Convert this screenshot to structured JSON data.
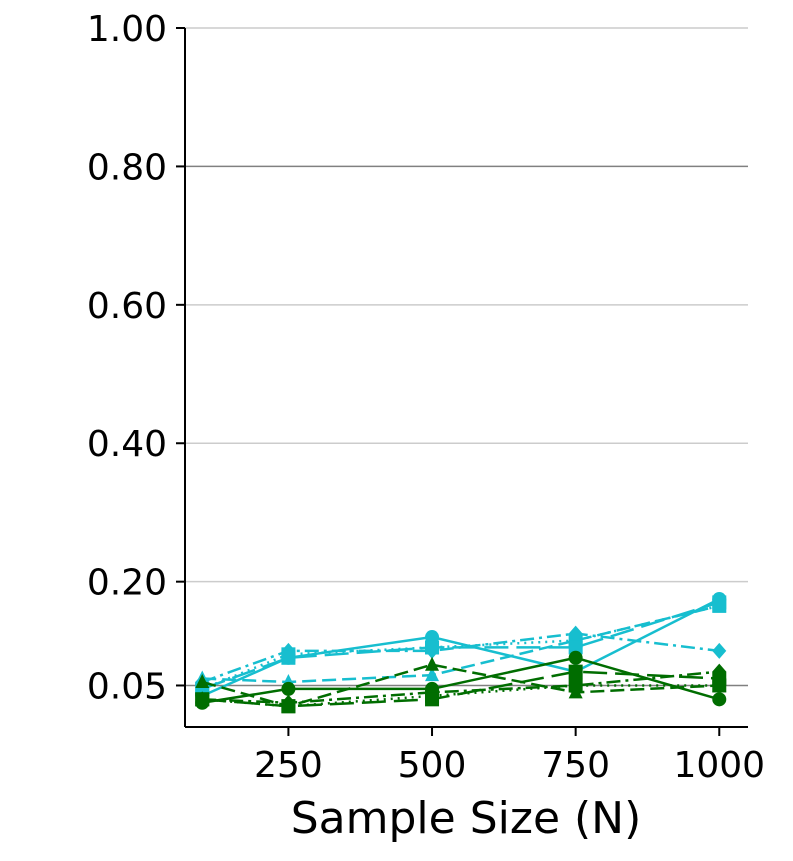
{
  "chart_data": {
    "type": "line",
    "title": "",
    "xlabel": "Sample Size (N)",
    "ylabel": "",
    "x": [
      100,
      250,
      500,
      750,
      1000
    ],
    "x_ticks": [
      250,
      500,
      750,
      1000
    ],
    "x_tick_labels": [
      "250",
      "500",
      "750",
      "1000"
    ],
    "xlim": [
      70,
      1050
    ],
    "y_ticks": [
      0.05,
      0.2,
      0.4,
      0.6,
      0.8,
      1.0
    ],
    "y_tick_labels": [
      "0.05",
      "0.20",
      "0.40",
      "0.60",
      "0.80",
      "1.00"
    ],
    "ylim": [
      -0.01,
      1.0
    ],
    "grid": "horizontal",
    "reference_line": 0.8,
    "baseline": 0.05,
    "colors": {
      "green": "#006d00",
      "cyan": "#17becf",
      "grid": "#cccccc",
      "reference": "#808080"
    },
    "series": [
      {
        "color": "#17becf",
        "dash": "solid",
        "marker": "circle",
        "values": [
          0.035,
          0.09,
          0.12,
          0.07,
          0.175
        ]
      },
      {
        "color": "#17becf",
        "dash": "dotted",
        "marker": "square",
        "values": [
          0.045,
          0.095,
          0.105,
          0.115,
          0.165
        ]
      },
      {
        "color": "#17becf",
        "dash": "dashed",
        "marker": "triangle",
        "values": [
          0.06,
          0.055,
          0.065,
          0.115,
          0.165
        ]
      },
      {
        "color": "#17becf",
        "dash": "dashdot",
        "marker": "diamond",
        "values": [
          0.055,
          0.1,
          0.1,
          0.125,
          0.1
        ]
      },
      {
        "color": "#17becf",
        "dash": "longdash",
        "marker": "square",
        "values": [
          0.045,
          0.09,
          0.105,
          0.105,
          0.17
        ]
      },
      {
        "color": "#006d00",
        "dash": "solid",
        "marker": "circle",
        "values": [
          0.025,
          0.045,
          0.045,
          0.09,
          0.03
        ]
      },
      {
        "color": "#006d00",
        "dash": "dotted",
        "marker": "square",
        "values": [
          0.03,
          0.02,
          0.035,
          0.05,
          0.05
        ]
      },
      {
        "color": "#006d00",
        "dash": "dashed",
        "marker": "triangle",
        "values": [
          0.055,
          0.02,
          0.08,
          0.04,
          0.05
        ]
      },
      {
        "color": "#006d00",
        "dash": "dashdot",
        "marker": "diamond",
        "values": [
          0.03,
          0.025,
          0.04,
          0.05,
          0.07
        ]
      },
      {
        "color": "#006d00",
        "dash": "longdash",
        "marker": "square",
        "values": [
          0.03,
          0.02,
          0.03,
          0.07,
          0.06
        ]
      }
    ]
  }
}
